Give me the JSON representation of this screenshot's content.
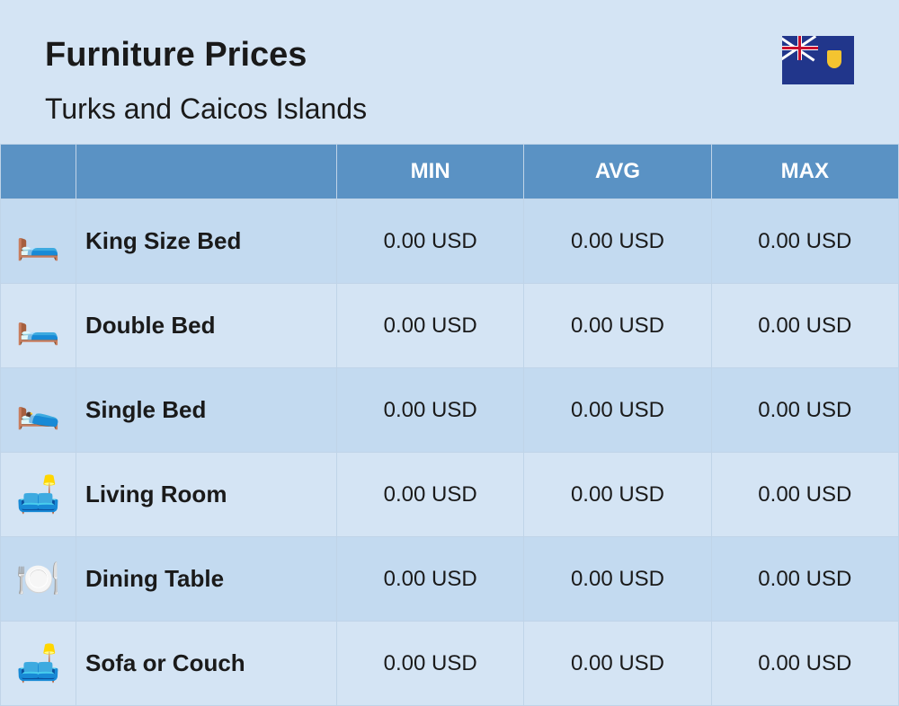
{
  "header": {
    "title": "Furniture Prices",
    "subtitle": "Turks and Caicos Islands"
  },
  "flag": {
    "name": "turks-and-caicos-flag",
    "bg_color": "#21368b",
    "shield_color": "#f4c430"
  },
  "table": {
    "columns": [
      "",
      "",
      "MIN",
      "AVG",
      "MAX"
    ],
    "header_bg": "#5a92c4",
    "header_text_color": "#ffffff",
    "row_odd_bg": "#c3daf0",
    "row_even_bg": "#d4e4f4",
    "border_color": "#c0d4e8",
    "rows": [
      {
        "icon": "🛏️",
        "icon_name": "king-bed-icon",
        "label": "King Size Bed",
        "min": "0.00 USD",
        "avg": "0.00 USD",
        "max": "0.00 USD"
      },
      {
        "icon": "🛏️",
        "icon_name": "double-bed-icon",
        "label": "Double Bed",
        "min": "0.00 USD",
        "avg": "0.00 USD",
        "max": "0.00 USD"
      },
      {
        "icon": "🛌",
        "icon_name": "single-bed-icon",
        "label": "Single Bed",
        "min": "0.00 USD",
        "avg": "0.00 USD",
        "max": "0.00 USD"
      },
      {
        "icon": "🛋️",
        "icon_name": "living-room-icon",
        "label": "Living Room",
        "min": "0.00 USD",
        "avg": "0.00 USD",
        "max": "0.00 USD"
      },
      {
        "icon": "🍽️",
        "icon_name": "dining-table-icon",
        "label": "Dining Table",
        "min": "0.00 USD",
        "avg": "0.00 USD",
        "max": "0.00 USD"
      },
      {
        "icon": "🛋️",
        "icon_name": "sofa-icon",
        "label": "Sofa or Couch",
        "min": "0.00 USD",
        "avg": "0.00 USD",
        "max": "0.00 USD"
      }
    ]
  },
  "styles": {
    "page_bg": "#d4e4f4",
    "title_color": "#1a1a1a",
    "title_fontsize": 38,
    "subtitle_fontsize": 32,
    "header_fontsize": 24,
    "label_fontsize": 26,
    "value_fontsize": 24
  }
}
